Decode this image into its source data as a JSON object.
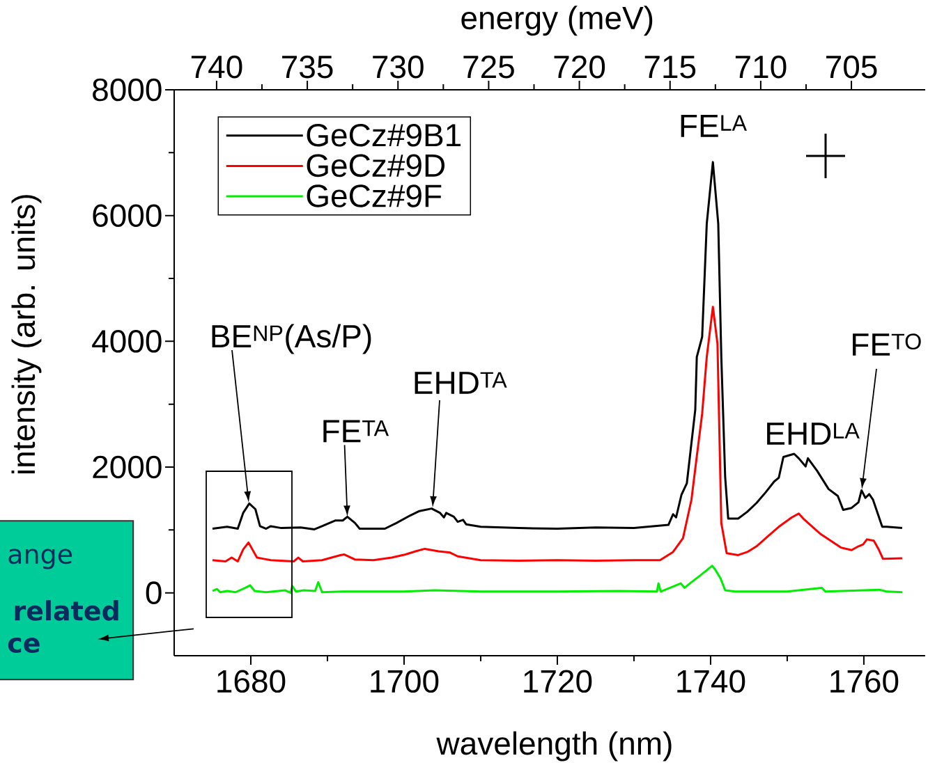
{
  "chart_data": {
    "type": "line",
    "xlabel": "wavelength (nm)",
    "ylabel": "intensity (arb. units)",
    "x2label": "energy (meV)",
    "xlim": [
      1670,
      1768
    ],
    "xticks": [
      1680,
      1700,
      1720,
      1740,
      1760
    ],
    "ylim": [
      -1000,
      8000
    ],
    "yticks": [
      0,
      2000,
      4000,
      6000,
      8000
    ],
    "x2lim": [
      742.34,
      700.93
    ],
    "x2ticks": [
      740,
      735,
      730,
      725,
      720,
      715,
      710,
      705
    ],
    "legend": "top left",
    "series": [
      {
        "name": "GeCz#9B1",
        "color": "#000000",
        "x": [
          1675,
          1676.9,
          1678.3,
          1679,
          1679.8,
          1680.6,
          1681.2,
          1682,
          1682.6,
          1684,
          1686.5,
          1688.3,
          1689.3,
          1691,
          1692,
          1692.6,
          1693.6,
          1694.2,
          1697.5,
          1699,
          1700.8,
          1702,
          1703.6,
          1704.7,
          1705.2,
          1705.5,
          1706.5,
          1707,
          1707.7,
          1708.1,
          1710,
          1715,
          1720,
          1725,
          1730,
          1734.5,
          1735.1,
          1735.5,
          1736.2,
          1736.9,
          1737.5,
          1738,
          1738.2,
          1738.9,
          1739.5,
          1740.3,
          1741,
          1741.4,
          1741.9,
          1742.3,
          1743.6,
          1744.8,
          1746,
          1747.2,
          1748.3,
          1748.9,
          1749.5,
          1750.9,
          1751.5,
          1752.4,
          1752.7,
          1753.9,
          1755.4,
          1756.6,
          1757.3,
          1758.4,
          1759.3,
          1759.7,
          1760.2,
          1760.7,
          1761.2,
          1762.4,
          1763,
          1765
        ],
        "values": [
          1020,
          1050,
          1020,
          1270,
          1420,
          1330,
          1060,
          1020,
          1060,
          1030,
          1040,
          1010,
          1060,
          1150,
          1150,
          1210,
          1110,
          1020,
          1020,
          1110,
          1230,
          1300,
          1340,
          1270,
          1200,
          1270,
          1210,
          1130,
          1160,
          1090,
          1050,
          1030,
          1020,
          1040,
          1030,
          1080,
          1250,
          1200,
          1560,
          1740,
          2380,
          2910,
          3750,
          4070,
          5870,
          6850,
          5870,
          3750,
          1850,
          1180,
          1180,
          1290,
          1430,
          1600,
          1770,
          1830,
          2160,
          2210,
          2140,
          2010,
          2140,
          1940,
          1650,
          1540,
          1320,
          1350,
          1440,
          1630,
          1510,
          1570,
          1480,
          1050,
          1050,
          1030
        ]
      },
      {
        "name": "GeCz#9D",
        "color": "#ff0000",
        "x": [
          1675,
          1676.7,
          1677.5,
          1678.3,
          1679,
          1679.7,
          1680.8,
          1681.7,
          1682.6,
          1685.6,
          1686.2,
          1686.8,
          1689.3,
          1691.7,
          1692.2,
          1693.6,
          1696,
          1698.4,
          1700.2,
          1701.5,
          1702.7,
          1704.5,
          1706,
          1707,
          1710,
          1715,
          1720,
          1725,
          1730,
          1733.4,
          1735.1,
          1736.4,
          1737.5,
          1738.2,
          1738.9,
          1739.5,
          1740.3,
          1740.9,
          1741.4,
          1742.1,
          1743.6,
          1744.8,
          1746,
          1747.2,
          1748.9,
          1750.6,
          1751.5,
          1752.1,
          1754.3,
          1757,
          1758.4,
          1759.3,
          1759.9,
          1760.4,
          1761.3,
          1761.9,
          1762.5,
          1765
        ],
        "values": [
          520,
          500,
          560,
          500,
          690,
          800,
          560,
          540,
          520,
          500,
          560,
          500,
          520,
          600,
          610,
          530,
          520,
          560,
          610,
          660,
          700,
          660,
          640,
          580,
          520,
          510,
          520,
          510,
          520,
          520,
          650,
          870,
          1480,
          2170,
          2850,
          3750,
          4550,
          3960,
          1110,
          630,
          600,
          650,
          740,
          870,
          1050,
          1200,
          1260,
          1180,
          940,
          720,
          680,
          740,
          770,
          850,
          830,
          700,
          540,
          550
        ]
      },
      {
        "name": "GeCz#9F",
        "color": "#00ee00",
        "x": [
          1675,
          1675.6,
          1676,
          1676.9,
          1678,
          1679.3,
          1679.9,
          1680.5,
          1682,
          1684.5,
          1685.2,
          1685.4,
          1685.9,
          1686.9,
          1688.4,
          1688.8,
          1689.3,
          1692,
          1700,
          1704,
          1710,
          1720,
          1728,
          1733,
          1733.2,
          1733.5,
          1736.1,
          1736.6,
          1737.3,
          1739,
          1740.2,
          1740.6,
          1741.3,
          1741.9,
          1743.2,
          1750,
          1754.5,
          1755,
          1760,
          1762,
          1763,
          1765
        ],
        "values": [
          30,
          60,
          10,
          30,
          10,
          80,
          120,
          30,
          10,
          40,
          0,
          110,
          20,
          40,
          30,
          170,
          10,
          20,
          20,
          40,
          20,
          20,
          30,
          20,
          150,
          20,
          150,
          80,
          150,
          310,
          430,
          370,
          230,
          40,
          20,
          20,
          80,
          20,
          40,
          50,
          20,
          10
        ]
      }
    ],
    "annotations": [
      "BE$^{NP}$(As/P)",
      {
        "text": "FE$^{TA}$",
        "x": 1692.6,
        "y": 1210
      },
      "EHD$^{TA}$",
      {
        "text": "FE$^{LA}$",
        "x": 1740.3,
        "y": 6850
      },
      {
        "text": "EHD$^{LA}$",
        "x": 1750.9,
        "y": 2210
      },
      "FE$^{TO}$",
      "ange",
      "related",
      "ce"
    ]
  }
}
